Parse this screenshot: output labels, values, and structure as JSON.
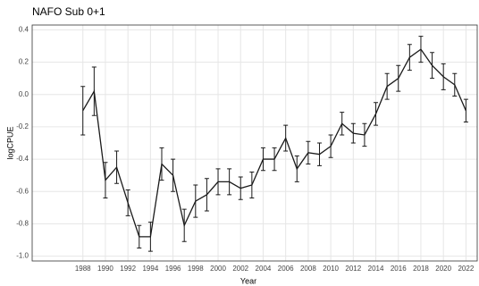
{
  "chart_data": {
    "type": "line",
    "title": "NAFO Sub 0+1",
    "x_label": "Year",
    "y_label": "logCPUE",
    "x": [
      1988,
      1989,
      1990,
      1991,
      1992,
      1993,
      1994,
      1995,
      1996,
      1997,
      1998,
      1999,
      2000,
      2001,
      2002,
      2003,
      2004,
      2005,
      2006,
      2007,
      2008,
      2009,
      2010,
      2011,
      2012,
      2013,
      2014,
      2015,
      2016,
      2017,
      2018,
      2019,
      2020,
      2021,
      2022
    ],
    "series": [
      {
        "color": "#1a1a1a",
        "values": [
          -0.1,
          0.02,
          -0.53,
          -0.45,
          -0.67,
          -0.88,
          -0.88,
          -0.43,
          -0.5,
          -0.81,
          -0.66,
          -0.62,
          -0.54,
          -0.54,
          -0.58,
          -0.56,
          -0.4,
          -0.4,
          -0.27,
          -0.46,
          -0.36,
          -0.37,
          -0.32,
          -0.18,
          -0.24,
          -0.25,
          -0.12,
          0.05,
          0.1,
          0.23,
          0.28,
          0.18,
          0.11,
          0.06,
          -0.1
        ],
        "errors": [
          0.15,
          0.15,
          0.11,
          0.1,
          0.08,
          0.07,
          0.09,
          0.1,
          0.1,
          0.1,
          0.1,
          0.1,
          0.08,
          0.08,
          0.07,
          0.08,
          0.07,
          0.07,
          0.08,
          0.08,
          0.07,
          0.07,
          0.07,
          0.07,
          0.06,
          0.07,
          0.07,
          0.08,
          0.08,
          0.08,
          0.08,
          0.08,
          0.08,
          0.07,
          0.07
        ]
      }
    ],
    "xlim": [
      1983.5,
      2023
    ],
    "xticks": [
      1988,
      1990,
      1992,
      1994,
      1996,
      1998,
      2000,
      2002,
      2004,
      2006,
      2008,
      2010,
      2012,
      2014,
      2016,
      2018,
      2020,
      2022
    ],
    "ylim": [
      -1.03,
      0.43
    ],
    "yticks": [
      {
        "value": -1,
        "label": "-1.0"
      },
      -0.8,
      -0.6,
      -0.4,
      -0.2,
      {
        "value": 0,
        "label": "0.0"
      },
      0.2,
      0.4
    ],
    "grid": true
  }
}
